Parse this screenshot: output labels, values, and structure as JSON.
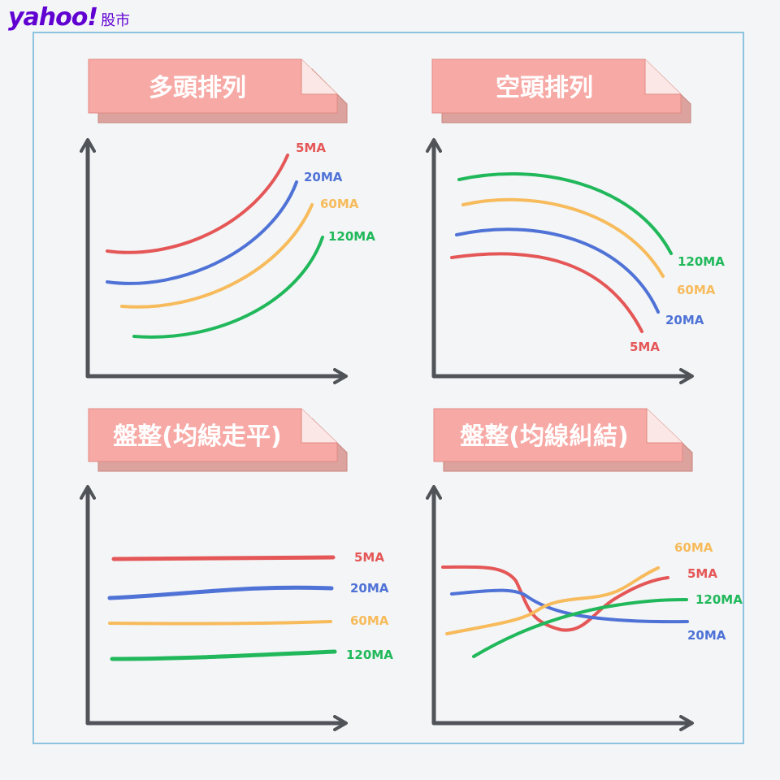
{
  "brand": {
    "logo": "yahoo!",
    "section": "股市"
  },
  "colors": {
    "5MA": "#e55757",
    "20MA": "#4f72d6",
    "60MA": "#f7bb5c",
    "120MA": "#20b85a",
    "banner": "#f7a9a5",
    "banner_shadow": "#dba29e",
    "axis": "#505458"
  },
  "panels": [
    {
      "title": "多頭排列",
      "labels": [
        "5MA",
        "20MA",
        "60MA",
        "120MA"
      ]
    },
    {
      "title": "空頭排列",
      "labels": [
        "120MA",
        "60MA",
        "20MA",
        "5MA"
      ]
    },
    {
      "title": "盤整(均線走平)",
      "labels": [
        "5MA",
        "20MA",
        "60MA",
        "120MA"
      ]
    },
    {
      "title": "盤整(均線糾結)",
      "labels": [
        "60MA",
        "5MA",
        "120MA",
        "20MA"
      ]
    }
  ]
}
